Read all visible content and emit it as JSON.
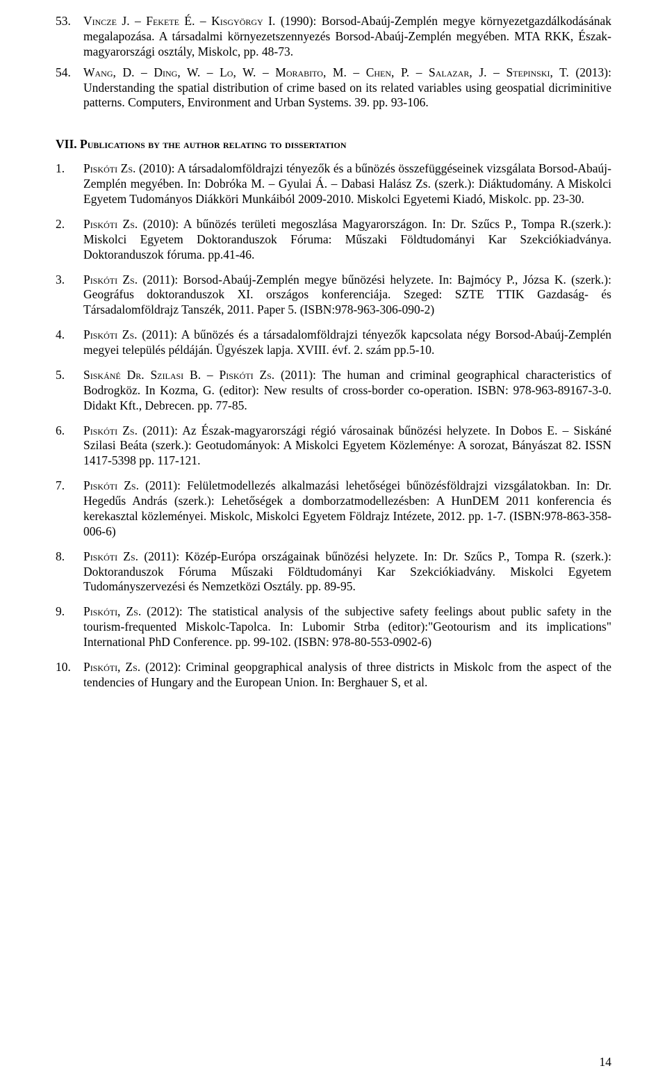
{
  "refs": [
    {
      "num": "53.",
      "html": "<span class='sc'>Vincze J. – Fekete É. – Kisgyörgy I.</span> (1990): Borsod-Abaúj-Zemplén megye környezetgazdálkodásának megalapozása. A társadalmi környezetszennyezés Borsod-Abaúj-Zemplén megyében. MTA RKK, Észak-magyarországi osztály, Miskolc, pp. 48-73."
    },
    {
      "num": "54.",
      "html": "<span class='sc'>Wang, D. – Ding, W. – Lo, W. – Morabito, M. – Chen, P. – Salazar, J. – Stepinski, T.</span> (2013): Understanding the spatial distribution of crime based on its related variables using geospatial dicriminitive patterns. Computers, Environment and Urban Systems. 39. pp. 93-106."
    }
  ],
  "section_heading": "VII. Publications by the author relating to dissertation",
  "pubs": [
    {
      "num": "1.",
      "html": "<span class='sc'>Piskóti Zs.</span> (2010): A társadalomföldrajzi tényezők és a bűnözés összefüggéseinek vizsgálata Borsod-Abaúj-Zemplén megyében. In: Dobróka M. – Gyulai Á. – Dabasi Halász Zs. (szerk.): Diáktudomány. A Miskolci Egyetem Tudományos Diákköri Munkáiból 2009-2010. Miskolci Egyetemi Kiadó, Miskolc. pp. 23-30."
    },
    {
      "num": "2.",
      "html": "<span class='sc'>Piskóti Zs.</span> (2010): A bűnözés területi megoszlása Magyarországon. In: Dr. Szűcs P., Tompa R.(szerk.): Miskolci Egyetem Doktoranduszok Fóruma: Műszaki Földtudományi Kar Szekciókiadványa. Doktoranduszok fóruma. pp.41-46."
    },
    {
      "num": "3.",
      "html": "<span class='sc'>Piskóti Zs.</span> (2011): Borsod-Abaúj-Zemplén megye bűnözési helyzete. In: Bajmócy P., Józsa K. (szerk.): Geográfus doktoranduszok XI. országos konferenciája. Szeged: SZTE TTIK Gazdaság- és Társadalomföldrajz Tanszék, 2011. Paper 5. (ISBN:978-963-306-090-2)"
    },
    {
      "num": "4.",
      "html": "<span class='sc'>Piskóti Zs.</span> (2011): A bűnözés és a társadalomföldrajzi tényezők kapcsolata négy Borsod-Abaúj-Zemplén megyei település példáján. Ügyészek lapja. XVIII. évf. 2. szám pp.5-10."
    },
    {
      "num": "5.",
      "html": "<span class='sc'>Siskáné Dr. Szilasi B. – Piskóti Zs.</span> (2011): The human and criminal geographical characteristics of Bodrogköz. In Kozma, G. (editor): New results of cross-border co-operation. ISBN: 978-963-89167-3-0. Didakt Kft., Debrecen. pp. 77-85."
    },
    {
      "num": "6.",
      "html": "<span class='sc'>Piskóti Zs.</span> (2011): Az Észak-magyarországi régió városainak bűnözési helyzete. In Dobos E. – Siskáné Szilasi Beáta (szerk.): Geotudományok: A Miskolci Egyetem Közleménye: A sorozat, Bányászat 82. ISSN 1417-5398 pp. 117-121."
    },
    {
      "num": "7.",
      "html": "<span class='sc'>Piskóti Zs.</span> (2011): Felületmodellezés alkalmazási lehetőségei bűnözésföldrajzi vizsgálatokban. In: Dr. Hegedűs András (szerk.): Lehetőségek a domborzatmodellezésben: A HunDEM 2011 konferencia és kerekasztal közleményei. Miskolc, Miskolci Egyetem Földrajz Intézete, 2012. pp. 1-7. (ISBN:978-863-358-006-6)"
    },
    {
      "num": "8.",
      "html": "<span class='sc'>Piskóti Zs.</span> (2011): Közép-Európa országainak bűnözési helyzete. In: Dr. Szűcs P., Tompa R. (szerk.): Doktoranduszok Fóruma Műszaki Földtudományi Kar Szekciókiadvány. Miskolci Egyetem Tudományszervezési és Nemzetközi Osztály. pp. 89-95."
    },
    {
      "num": "9.",
      "html": "<span class='sc'>Piskóti, Zs.</span> (2012): The statistical analysis of the subjective safety feelings about public safety in the tourism-frequented Miskolc-Tapolca. In: Lubomir Strba (editor):&quot;Geotourism and its implications&quot; International PhD Conference. pp. 99-102. (ISBN: 978-80-553-0902-6)"
    },
    {
      "num": "10.",
      "html": "<span class='sc'>Piskóti, Zs.</span> (2012): Criminal geopgraphical analysis of three districts in Miskolc from the aspect of the tendencies of Hungary and the European Union. In: Berghauer S, et al."
    }
  ],
  "page_number": "14"
}
